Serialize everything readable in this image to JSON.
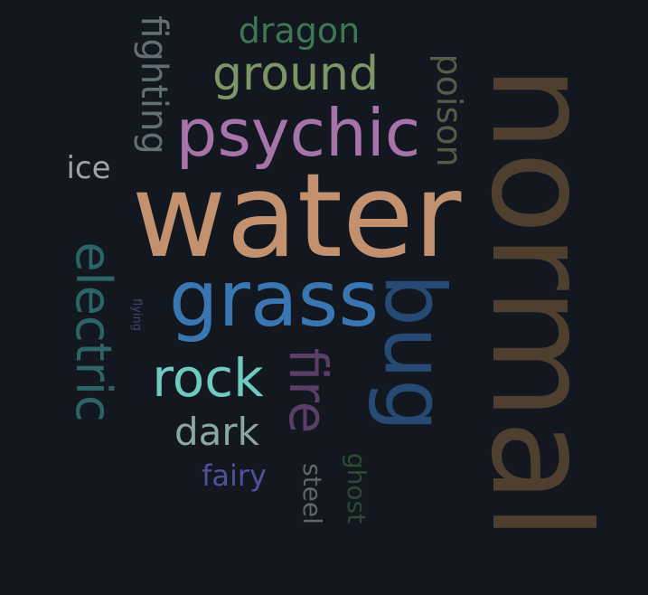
{
  "background": "#131820",
  "words": [
    {
      "text": "water",
      "color": "#c4916e",
      "name": "word-water"
    },
    {
      "text": "normal",
      "color": "#4f3f2e",
      "name": "word-normal"
    },
    {
      "text": "grass",
      "color": "#3a77b2",
      "name": "word-grass"
    },
    {
      "text": "psychic",
      "color": "#a674a9",
      "name": "word-psychic"
    },
    {
      "text": "bug",
      "color": "#254a73",
      "name": "word-bug"
    },
    {
      "text": "ground",
      "color": "#7c9667",
      "name": "word-ground"
    },
    {
      "text": "electric",
      "color": "#2d6465",
      "name": "word-electric"
    },
    {
      "text": "rock",
      "color": "#6fcac0",
      "name": "word-rock"
    },
    {
      "text": "fire",
      "color": "#5b3f66",
      "name": "word-fire"
    },
    {
      "text": "dragon",
      "color": "#3e7752",
      "name": "word-dragon"
    },
    {
      "text": "fighting",
      "color": "#627170",
      "name": "word-fighting"
    },
    {
      "text": "poison",
      "color": "#535d48",
      "name": "word-poison"
    },
    {
      "text": "dark",
      "color": "#8ca7a3",
      "name": "word-dark"
    },
    {
      "text": "ice",
      "color": "#a0a3a3",
      "name": "word-ice"
    },
    {
      "text": "fairy",
      "color": "#52509b",
      "name": "word-fairy"
    },
    {
      "text": "ghost",
      "color": "#2d4a33",
      "name": "word-ghost"
    },
    {
      "text": "steel",
      "color": "#5e6667",
      "name": "word-steel"
    },
    {
      "text": "flying",
      "color": "#3d4667",
      "name": "word-flying"
    }
  ]
}
